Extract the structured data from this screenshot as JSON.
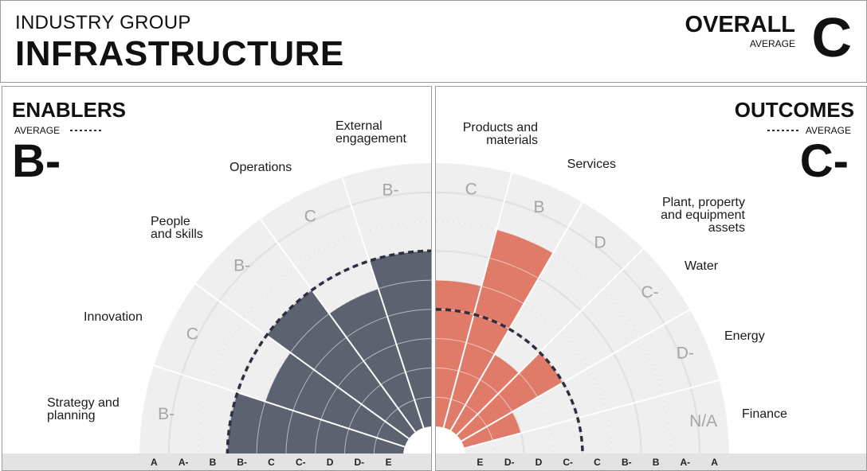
{
  "header": {
    "kicker": "INDUSTRY GROUP",
    "group_name": "INFRASTRUCTURE",
    "overall_title": "OVERALL",
    "overall_sub": "AVERAGE",
    "overall_grade": "C"
  },
  "enablers": {
    "title": "ENABLERS",
    "avg_label": "AVERAGE",
    "avg_grade": "B-",
    "axis_ticks": [
      "A",
      "A-",
      "B",
      "B-",
      "C",
      "C-",
      "D",
      "D-",
      "E"
    ]
  },
  "outcomes": {
    "title": "OUTCOMES",
    "avg_label": "AVERAGE",
    "avg_grade": "C-",
    "axis_ticks": [
      "E",
      "D-",
      "D",
      "C-",
      "C",
      "B-",
      "B",
      "A-",
      "A"
    ]
  },
  "colors": {
    "enablers_bar": "#5c6270",
    "outcomes_bar": "#e07b6a",
    "sector_bg": "#efefef",
    "average_line": "#2d2f3f",
    "axis_bar_bg": "#e3e3e3"
  },
  "chart_data": [
    {
      "type": "polar-bar",
      "name": "Enablers",
      "grade_scale": [
        "E",
        "D-",
        "D",
        "C-",
        "C",
        "B-",
        "B",
        "A-",
        "A"
      ],
      "categories": [
        "Strategy and planning",
        "Innovation",
        "People and skills",
        "Operations",
        "External engagement"
      ],
      "grades": [
        "B-",
        "C",
        "B-",
        "C",
        "B-"
      ],
      "average": "B-"
    },
    {
      "type": "polar-bar",
      "name": "Outcomes",
      "grade_scale": [
        "E",
        "D-",
        "D",
        "C-",
        "C",
        "B-",
        "B",
        "A-",
        "A"
      ],
      "categories": [
        "Products and materials",
        "Services",
        "Plant, property and equipment assets",
        "Water",
        "Energy",
        "Finance"
      ],
      "grades": [
        "C",
        "B",
        "D",
        "C-",
        "D-",
        "N/A"
      ],
      "average": "C-"
    }
  ]
}
